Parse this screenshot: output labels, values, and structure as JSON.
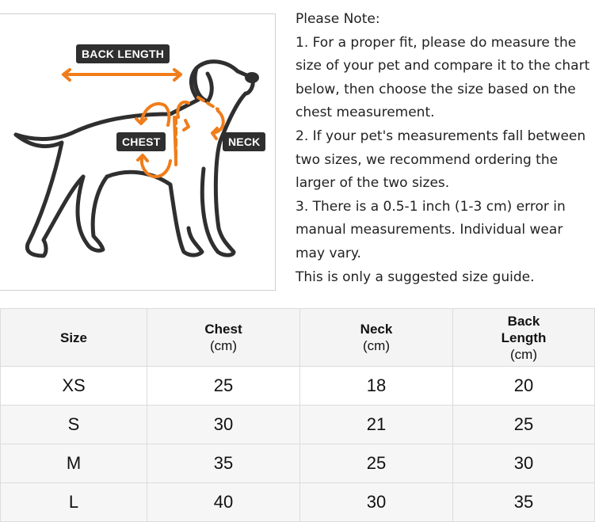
{
  "figure": {
    "labels": {
      "back_length": "BACK LENGTH",
      "chest": "CHEST",
      "neck": "NECK"
    },
    "colors": {
      "arrow": "#f07d1a",
      "outline": "#2f2f2f"
    }
  },
  "notes": [
    "Please Note:",
    "1. For a proper fit, please do measure the",
    "size of your pet and compare it to the chart",
    "below, then choose the size based on the",
    "chest measurement.",
    "2. If your pet's measurements fall between",
    "two sizes, we recommend ordering the",
    "larger of the two sizes.",
    "3. There is a 0.5-1 inch (1-3 cm) error in",
    "manual measurements. Individual wear",
    "may vary.",
    "This is only a suggested size guide."
  ],
  "table": {
    "headers": [
      [
        "Size"
      ],
      [
        "Chest",
        "(cm)"
      ],
      [
        "Neck",
        "(cm)"
      ],
      [
        "Back",
        "Length",
        "(cm)"
      ]
    ],
    "rows": [
      [
        "XS",
        "25",
        "18",
        "20"
      ],
      [
        "S",
        "30",
        "21",
        "25"
      ],
      [
        "M",
        "35",
        "25",
        "30"
      ],
      [
        "L",
        "40",
        "30",
        "35"
      ]
    ]
  }
}
